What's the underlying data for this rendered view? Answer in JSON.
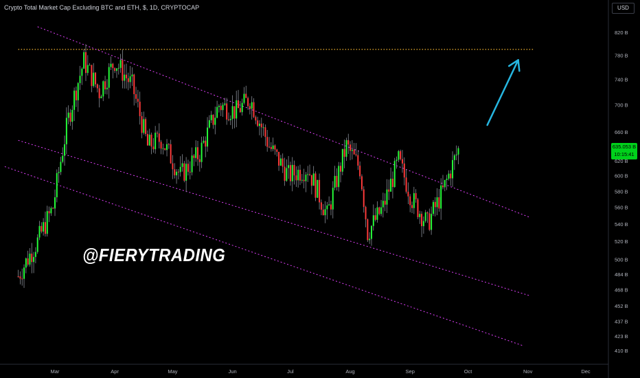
{
  "header": {
    "title": "Crypto Total Market Cap Excluding BTC and ETH, $, 1D, CRYPTOCAP",
    "currency": "USD"
  },
  "watermark": "@FIERYTRADING",
  "price_tag": {
    "value": "635.053 B",
    "timer": "10:15:41"
  },
  "colors": {
    "up": "#26ff3a",
    "down": "#ff3b3b",
    "channel": "#e040fb",
    "resistance": "#f7b731",
    "arrow": "#26b6e0",
    "axis_text": "#b2b5be"
  },
  "chart_data": {
    "type": "candlestick",
    "title": "Crypto Total Market Cap Excluding BTC and ETH, $, 1D, CRYPTOCAP",
    "y_scale": "log",
    "ylim": [
      400,
      860
    ],
    "y_ticks": [
      "820 B",
      "780 B",
      "740 B",
      "700 B",
      "660 B",
      "640 B",
      "620 B",
      "600 B",
      "580 B",
      "560 B",
      "540 B",
      "520 B",
      "500 B",
      "484 B",
      "468 B",
      "452 B",
      "437 B",
      "423 B",
      "410 B"
    ],
    "x_ticks": [
      "Mar",
      "Apr",
      "May",
      "Jun",
      "Jul",
      "Aug",
      "Sep",
      "Oct",
      "Nov",
      "Dec"
    ],
    "last_price": 635.053,
    "resistance_level": 790,
    "close_points": [
      {
        "date": "2021-02-10",
        "value": 482
      },
      {
        "date": "2021-02-20",
        "value": 520
      },
      {
        "date": "2021-02-28",
        "value": 560
      },
      {
        "date": "2021-03-08",
        "value": 680
      },
      {
        "date": "2021-03-16",
        "value": 770
      },
      {
        "date": "2021-03-24",
        "value": 720
      },
      {
        "date": "2021-04-01",
        "value": 770
      },
      {
        "date": "2021-04-10",
        "value": 730
      },
      {
        "date": "2021-04-18",
        "value": 640
      },
      {
        "date": "2021-04-25",
        "value": 650
      },
      {
        "date": "2021-05-05",
        "value": 600
      },
      {
        "date": "2021-05-15",
        "value": 630
      },
      {
        "date": "2021-05-25",
        "value": 700
      },
      {
        "date": "2021-06-03",
        "value": 690
      },
      {
        "date": "2021-06-10",
        "value": 710
      },
      {
        "date": "2021-06-20",
        "value": 640
      },
      {
        "date": "2021-06-30",
        "value": 600
      },
      {
        "date": "2021-07-10",
        "value": 610
      },
      {
        "date": "2021-07-20",
        "value": 550
      },
      {
        "date": "2021-07-30",
        "value": 640
      },
      {
        "date": "2021-08-06",
        "value": 610
      },
      {
        "date": "2021-08-10",
        "value": 530
      },
      {
        "date": "2021-08-18",
        "value": 560
      },
      {
        "date": "2021-08-26",
        "value": 620
      },
      {
        "date": "2021-09-02",
        "value": 570
      },
      {
        "date": "2021-09-10",
        "value": 540
      },
      {
        "date": "2021-09-18",
        "value": 580
      },
      {
        "date": "2021-09-26",
        "value": 635
      }
    ],
    "channel_lines": [
      {
        "name": "upper",
        "start": {
          "date": "2021-02-20",
          "value": 830
        },
        "end": {
          "date": "2021-11-02",
          "value": 548
        }
      },
      {
        "name": "middle",
        "start": {
          "date": "2021-02-10",
          "value": 648
        },
        "end": {
          "date": "2021-11-02",
          "value": 462
        }
      },
      {
        "name": "lower",
        "start": {
          "date": "2021-02-03",
          "value": 612
        },
        "end": {
          "date": "2021-10-30",
          "value": 414
        }
      }
    ],
    "arrow": {
      "from": {
        "date": "2021-10-11",
        "value": 670
      },
      "to": {
        "date": "2021-10-27",
        "value": 772
      }
    }
  }
}
